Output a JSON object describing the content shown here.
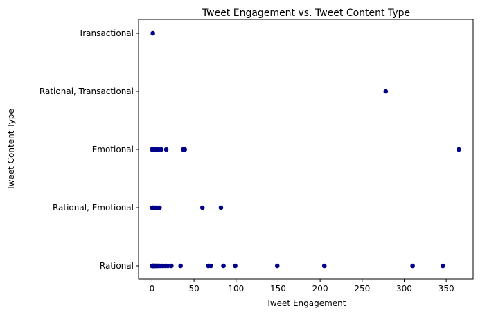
{
  "chart_data": {
    "type": "scatter",
    "title": "Tweet Engagement vs. Tweet Content Type",
    "xlabel": "Tweet Engagement",
    "ylabel": "Tweet Content Type",
    "xlim": [
      -16,
      382
    ],
    "xticks": [
      0,
      50,
      100,
      150,
      200,
      250,
      300,
      350
    ],
    "categories": [
      "Rational",
      "Rational, Emotional",
      "Emotional",
      "Rational, Transactional",
      "Transactional"
    ],
    "grid": false,
    "marker_color": "#00008b",
    "points": [
      {
        "x": 0,
        "y": "Rational"
      },
      {
        "x": 0.5,
        "y": "Rational"
      },
      {
        "x": 1,
        "y": "Rational"
      },
      {
        "x": 1.5,
        "y": "Rational"
      },
      {
        "x": 2,
        "y": "Rational"
      },
      {
        "x": 3,
        "y": "Rational"
      },
      {
        "x": 4,
        "y": "Rational"
      },
      {
        "x": 5,
        "y": "Rational"
      },
      {
        "x": 6,
        "y": "Rational"
      },
      {
        "x": 7,
        "y": "Rational"
      },
      {
        "x": 9,
        "y": "Rational"
      },
      {
        "x": 11,
        "y": "Rational"
      },
      {
        "x": 13,
        "y": "Rational"
      },
      {
        "x": 16,
        "y": "Rational"
      },
      {
        "x": 19,
        "y": "Rational"
      },
      {
        "x": 23,
        "y": "Rational"
      },
      {
        "x": 34,
        "y": "Rational"
      },
      {
        "x": 67,
        "y": "Rational"
      },
      {
        "x": 70,
        "y": "Rational"
      },
      {
        "x": 85,
        "y": "Rational"
      },
      {
        "x": 99,
        "y": "Rational"
      },
      {
        "x": 149,
        "y": "Rational"
      },
      {
        "x": 205,
        "y": "Rational"
      },
      {
        "x": 310,
        "y": "Rational"
      },
      {
        "x": 346,
        "y": "Rational"
      },
      {
        "x": 0,
        "y": "Rational, Emotional"
      },
      {
        "x": 1,
        "y": "Rational, Emotional"
      },
      {
        "x": 2,
        "y": "Rational, Emotional"
      },
      {
        "x": 4,
        "y": "Rational, Emotional"
      },
      {
        "x": 6,
        "y": "Rational, Emotional"
      },
      {
        "x": 9,
        "y": "Rational, Emotional"
      },
      {
        "x": 60,
        "y": "Rational, Emotional"
      },
      {
        "x": 82,
        "y": "Rational, Emotional"
      },
      {
        "x": 0,
        "y": "Emotional"
      },
      {
        "x": 1,
        "y": "Emotional"
      },
      {
        "x": 2,
        "y": "Emotional"
      },
      {
        "x": 3,
        "y": "Emotional"
      },
      {
        "x": 4,
        "y": "Emotional"
      },
      {
        "x": 6,
        "y": "Emotional"
      },
      {
        "x": 8,
        "y": "Emotional"
      },
      {
        "x": 11,
        "y": "Emotional"
      },
      {
        "x": 17,
        "y": "Emotional"
      },
      {
        "x": 37,
        "y": "Emotional"
      },
      {
        "x": 39,
        "y": "Emotional"
      },
      {
        "x": 365,
        "y": "Emotional"
      },
      {
        "x": 278,
        "y": "Rational, Transactional"
      },
      {
        "x": 1,
        "y": "Transactional"
      }
    ]
  }
}
